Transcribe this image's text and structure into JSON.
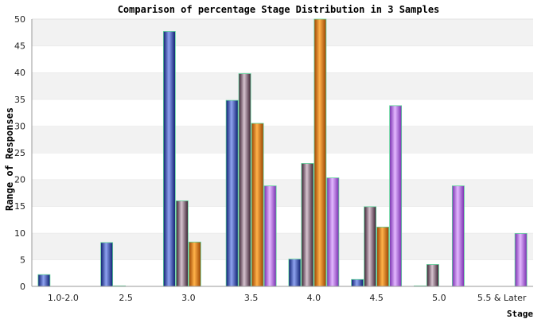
{
  "chart_data": {
    "type": "bar",
    "title": "Comparison of percentage Stage Distribution in 3 Samples",
    "xlabel": "Stage",
    "ylabel": "Range of Responses",
    "ylim": [
      0,
      50
    ],
    "yticks": [
      0,
      5,
      10,
      15,
      20,
      25,
      30,
      35,
      40,
      45,
      50
    ],
    "categories": [
      "1.0-2.0",
      "2.5",
      "3.0",
      "3.5",
      "4.0",
      "4.5",
      "5.0",
      "5.5 & Later"
    ],
    "grid": "horizontal alternating bands",
    "legend": "none",
    "series": [
      {
        "color": "#2a3fa8",
        "values": [
          2.2,
          8.2,
          47.7,
          34.8,
          5.1,
          1.3,
          0.1,
          0.0
        ]
      },
      {
        "color": "#6e4a63",
        "values": [
          0.0,
          0.1,
          16.0,
          39.8,
          23.0,
          14.9,
          4.1,
          0.0
        ]
      },
      {
        "color": "#e0740a",
        "values": [
          0.0,
          0.0,
          8.3,
          30.5,
          50.0,
          11.1,
          0.0,
          0.0
        ]
      },
      {
        "color": "#b25fe0",
        "values": [
          0.0,
          0.0,
          0.0,
          18.8,
          20.3,
          33.8,
          18.8,
          9.9
        ]
      }
    ]
  }
}
